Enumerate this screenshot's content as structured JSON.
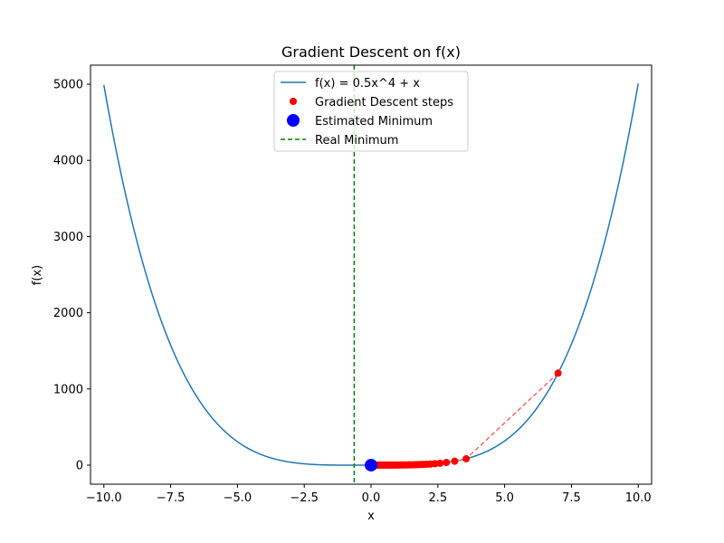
{
  "chart_data": {
    "type": "line",
    "title": "Gradient Descent on f(x)",
    "xlabel": "x",
    "ylabel": "f(x)",
    "xlim": [
      -10.5,
      10.5
    ],
    "ylim": [
      -250,
      5250
    ],
    "xticks": [
      -10.0,
      -7.5,
      -5.0,
      -2.5,
      0.0,
      2.5,
      5.0,
      7.5,
      10.0
    ],
    "xtick_labels": [
      "−10.0",
      "−7.5",
      "−5.0",
      "−2.5",
      "0.0",
      "2.5",
      "5.0",
      "7.5",
      "10.0"
    ],
    "yticks": [
      0,
      1000,
      2000,
      3000,
      4000,
      5000
    ],
    "ytick_labels": [
      "0",
      "1000",
      "2000",
      "3000",
      "4000",
      "5000"
    ],
    "grid": false,
    "legend_position": "top-center",
    "function": {
      "name": "f(x) = 0.5x^4 + x",
      "coefficient": 0.5,
      "power": 4,
      "x_range": [
        -10,
        10
      ],
      "color": "#1f77b4"
    },
    "gd_steps": {
      "name": "Gradient Descent steps",
      "color": "#ff0000",
      "path_color": "#ff6666",
      "x": [
        7.0,
        3.56,
        3.13,
        2.82,
        2.58,
        2.39,
        2.22,
        2.08,
        1.96,
        1.85,
        1.75,
        1.66,
        1.57,
        1.49,
        1.42,
        1.35,
        1.28,
        1.22,
        1.16,
        1.1,
        1.04,
        0.98,
        0.93,
        0.87,
        0.82,
        0.77,
        0.72,
        0.67,
        0.62,
        0.57,
        0.52,
        0.47,
        0.42,
        0.37,
        0.32,
        0.27,
        0.22,
        0.17,
        0.12,
        0.07,
        0.03,
        0.0
      ]
    },
    "estimated_minimum": {
      "name": "Estimated Minimum",
      "x": 0.0,
      "color": "#0000ff"
    },
    "real_minimum": {
      "name": "Real Minimum",
      "x": -0.63,
      "color": "#008000"
    }
  }
}
